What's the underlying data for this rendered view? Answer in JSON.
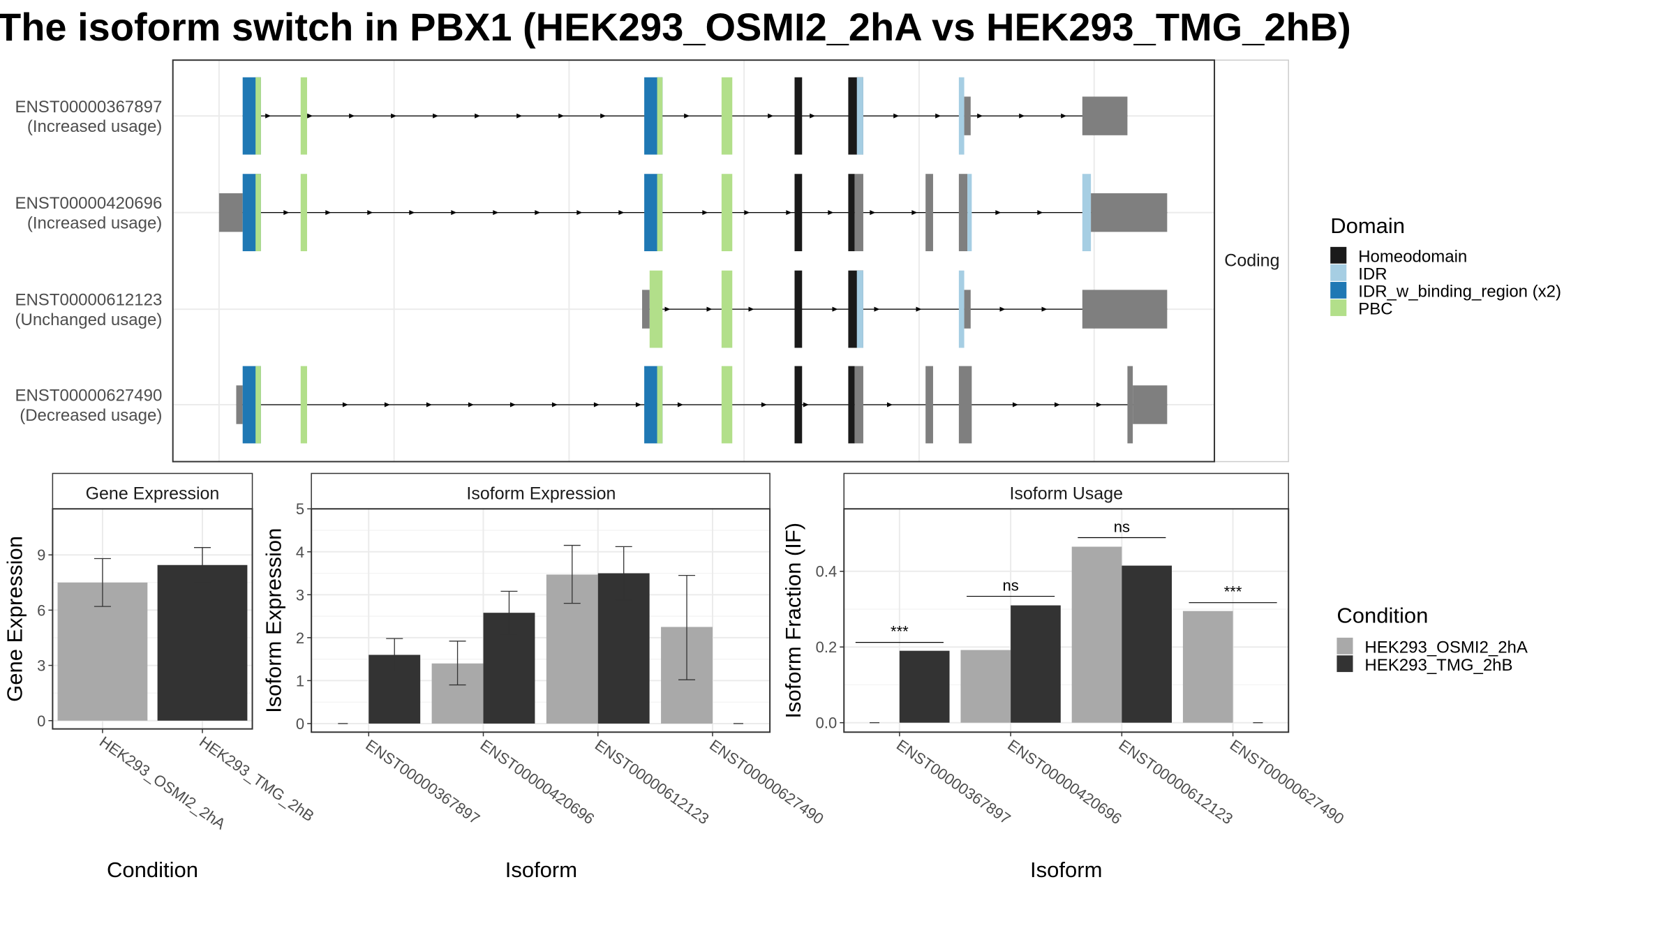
{
  "title": "The isoform switch in PBX1 (HEK293_OSMI2_2hA vs HEK293_TMG_2hB)",
  "colors": {
    "Homeodomain": "#1a1a1a",
    "IDR": "#a6cee3",
    "IDR_w_binding_region": "#1f78b4",
    "PBC": "#b2df8a",
    "noncoding": "#7f7f7f",
    "cond_A": "#a9a9a9",
    "cond_B": "#333333"
  },
  "gene_model": {
    "facet_label": "Coding",
    "transcripts": [
      {
        "id": "ENST00000367897",
        "usage": "(Increased usage)",
        "line": [
          226,
          1050
        ],
        "blocks": [
          {
            "s": 226,
            "e": 243,
            "h": "full",
            "t": "IDR_w_binding_region"
          },
          {
            "s": 238,
            "e": 243,
            "h": "full",
            "t": "PBC"
          },
          {
            "s": 280,
            "e": 286,
            "h": "full",
            "t": "PBC"
          },
          {
            "s": 600,
            "e": 617,
            "h": "full",
            "t": "IDR_w_binding_region"
          },
          {
            "s": 612,
            "e": 617,
            "h": "full",
            "t": "PBC"
          },
          {
            "s": 672,
            "e": 682,
            "h": "full",
            "t": "PBC"
          },
          {
            "s": 740,
            "e": 747,
            "h": "full",
            "t": "Homeodomain"
          },
          {
            "s": 790,
            "e": 804,
            "h": "full",
            "t": "Homeodomain"
          },
          {
            "s": 798,
            "e": 804,
            "h": "full",
            "t": "IDR"
          },
          {
            "s": 893,
            "e": 898,
            "h": "full",
            "t": "IDR"
          },
          {
            "s": 898,
            "e": 904,
            "h": "utr",
            "t": "noncoding"
          },
          {
            "s": 1008,
            "e": 1050,
            "h": "utr",
            "t": "noncoding"
          }
        ]
      },
      {
        "id": "ENST00000420696",
        "usage": "(Increased usage)",
        "line": [
          204,
          1087
        ],
        "blocks": [
          {
            "s": 204,
            "e": 226,
            "h": "utr",
            "t": "noncoding"
          },
          {
            "s": 226,
            "e": 243,
            "h": "full",
            "t": "IDR_w_binding_region"
          },
          {
            "s": 238,
            "e": 243,
            "h": "full",
            "t": "PBC"
          },
          {
            "s": 280,
            "e": 286,
            "h": "full",
            "t": "PBC"
          },
          {
            "s": 600,
            "e": 617,
            "h": "full",
            "t": "IDR_w_binding_region"
          },
          {
            "s": 612,
            "e": 617,
            "h": "full",
            "t": "PBC"
          },
          {
            "s": 672,
            "e": 682,
            "h": "full",
            "t": "PBC"
          },
          {
            "s": 740,
            "e": 747,
            "h": "full",
            "t": "Homeodomain"
          },
          {
            "s": 790,
            "e": 796,
            "h": "full",
            "t": "Homeodomain"
          },
          {
            "s": 796,
            "e": 804,
            "h": "full",
            "t": "noncoding"
          },
          {
            "s": 862,
            "e": 869,
            "h": "full",
            "t": "noncoding"
          },
          {
            "s": 893,
            "e": 901,
            "h": "full",
            "t": "noncoding"
          },
          {
            "s": 901,
            "e": 905,
            "h": "full",
            "t": "IDR"
          },
          {
            "s": 1008,
            "e": 1016,
            "h": "full",
            "t": "IDR"
          },
          {
            "s": 1016,
            "e": 1087,
            "h": "utr",
            "t": "noncoding"
          }
        ]
      },
      {
        "id": "ENST00000612123",
        "usage": "(Unchanged usage)",
        "line": [
          598,
          1087
        ],
        "blocks": [
          {
            "s": 598,
            "e": 605,
            "h": "utr",
            "t": "noncoding"
          },
          {
            "s": 605,
            "e": 617,
            "h": "full",
            "t": "PBC"
          },
          {
            "s": 672,
            "e": 682,
            "h": "full",
            "t": "PBC"
          },
          {
            "s": 740,
            "e": 747,
            "h": "full",
            "t": "Homeodomain"
          },
          {
            "s": 790,
            "e": 804,
            "h": "full",
            "t": "Homeodomain"
          },
          {
            "s": 798,
            "e": 804,
            "h": "full",
            "t": "IDR"
          },
          {
            "s": 893,
            "e": 898,
            "h": "full",
            "t": "IDR"
          },
          {
            "s": 898,
            "e": 904,
            "h": "utr",
            "t": "noncoding"
          },
          {
            "s": 1008,
            "e": 1087,
            "h": "utr",
            "t": "noncoding"
          }
        ]
      },
      {
        "id": "ENST00000627490",
        "usage": "(Decreased usage)",
        "line": [
          220,
          1087
        ],
        "blocks": [
          {
            "s": 220,
            "e": 226,
            "h": "utr",
            "t": "noncoding"
          },
          {
            "s": 226,
            "e": 243,
            "h": "full",
            "t": "IDR_w_binding_region"
          },
          {
            "s": 238,
            "e": 243,
            "h": "full",
            "t": "PBC"
          },
          {
            "s": 280,
            "e": 286,
            "h": "full",
            "t": "PBC"
          },
          {
            "s": 600,
            "e": 617,
            "h": "full",
            "t": "IDR_w_binding_region"
          },
          {
            "s": 612,
            "e": 617,
            "h": "full",
            "t": "PBC"
          },
          {
            "s": 672,
            "e": 682,
            "h": "full",
            "t": "PBC"
          },
          {
            "s": 740,
            "e": 747,
            "h": "full",
            "t": "Homeodomain"
          },
          {
            "s": 790,
            "e": 796,
            "h": "full",
            "t": "Homeodomain"
          },
          {
            "s": 796,
            "e": 804,
            "h": "full",
            "t": "noncoding"
          },
          {
            "s": 862,
            "e": 869,
            "h": "full",
            "t": "noncoding"
          },
          {
            "s": 893,
            "e": 905,
            "h": "full",
            "t": "noncoding"
          },
          {
            "s": 1050,
            "e": 1055,
            "h": "full",
            "t": "noncoding"
          },
          {
            "s": 1055,
            "e": 1087,
            "h": "utr",
            "t": "noncoding"
          }
        ]
      }
    ]
  },
  "domain_legend": {
    "title": "Domain",
    "items": [
      {
        "label": "Homeodomain",
        "key": "Homeodomain"
      },
      {
        "label": "IDR",
        "key": "IDR"
      },
      {
        "label": "IDR_w_binding_region (x2)",
        "key": "IDR_w_binding_region"
      },
      {
        "label": "PBC",
        "key": "PBC"
      }
    ]
  },
  "condition_legend": {
    "title": "Condition",
    "items": [
      {
        "label": "HEK293_OSMI2_2hA",
        "key": "cond_A"
      },
      {
        "label": "HEK293_TMG_2hB",
        "key": "cond_B"
      }
    ]
  },
  "chart_data": [
    {
      "type": "bar",
      "title": "Gene Expression",
      "xlabel": "Condition",
      "ylabel": "Gene Expression",
      "ylim": [
        -0.45,
        11.5
      ],
      "yticks": [
        0,
        3,
        6,
        9
      ],
      "categories": [
        "HEK293_OSMI2_2hA",
        "HEK293_TMG_2hB"
      ],
      "values": [
        7.5,
        8.45
      ],
      "error": [
        [
          6.2,
          8.8
        ],
        [
          7.5,
          9.4
        ]
      ]
    },
    {
      "type": "bar",
      "title": "Isoform Expression",
      "xlabel": "Isoform",
      "ylabel": "Isoform Expression",
      "ylim": [
        -0.2,
        5.0
      ],
      "yticks": [
        0,
        1,
        2,
        3,
        4,
        5
      ],
      "categories": [
        "ENST00000367897",
        "ENST00000420696",
        "ENST00000612123",
        "ENST00000627490"
      ],
      "series": [
        {
          "name": "HEK293_OSMI2_2hA",
          "values": [
            0,
            1.4,
            3.47,
            2.25
          ],
          "error": [
            [
              0,
              0
            ],
            [
              0.9,
              1.92
            ],
            [
              2.8,
              4.15
            ],
            [
              1.02,
              3.45
            ]
          ]
        },
        {
          "name": "HEK293_TMG_2hB",
          "values": [
            1.6,
            2.58,
            3.5,
            0
          ],
          "error": [
            [
              1.22,
              1.98
            ],
            [
              2.08,
              3.08
            ],
            [
              2.88,
              4.12
            ],
            [
              0,
              0
            ]
          ]
        }
      ]
    },
    {
      "type": "bar",
      "title": "Isoform Usage",
      "xlabel": "Isoform",
      "ylabel": "Isoform Fraction (IF)",
      "ylim": [
        -0.025,
        0.565
      ],
      "yticks": [
        0.0,
        0.2,
        0.4
      ],
      "ytick_labels": [
        "0.0",
        "0.2",
        "0.4"
      ],
      "categories": [
        "ENST00000367897",
        "ENST00000420696",
        "ENST00000612123",
        "ENST00000627490"
      ],
      "series": [
        {
          "name": "HEK293_OSMI2_2hA",
          "values": [
            0,
            0.192,
            0.465,
            0.295
          ]
        },
        {
          "name": "HEK293_TMG_2hB",
          "values": [
            0.19,
            0.31,
            0.415,
            0
          ]
        }
      ],
      "significance": [
        "***",
        "ns",
        "ns",
        "***"
      ]
    }
  ]
}
